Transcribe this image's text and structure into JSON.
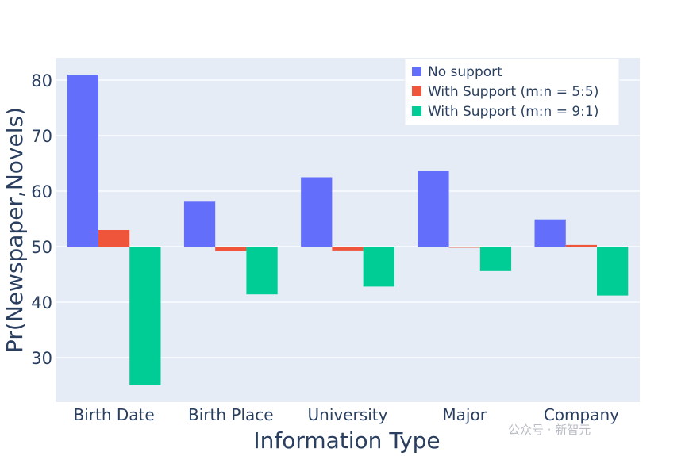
{
  "chart_data": {
    "type": "bar",
    "title": "",
    "xlabel": "Information Type",
    "ylabel": "Pr(Newspaper,Novels)",
    "categories": [
      "Birth Date",
      "Birth Place",
      "University",
      "Major",
      "Company"
    ],
    "base": 50,
    "ylim": [
      22,
      84
    ],
    "yticks": [
      30,
      40,
      50,
      60,
      70,
      80
    ],
    "grid": true,
    "legend_position": "top-right",
    "series": [
      {
        "name": "No support",
        "color": "#636efa",
        "values": [
          81,
          58.1,
          62.5,
          63.6,
          54.9
        ]
      },
      {
        "name": "With Support (m:n = 5:5)",
        "color": "#ef553b",
        "values": [
          53,
          49.2,
          49.3,
          49.8,
          50.3
        ]
      },
      {
        "name": "With Support (m:n = 9:1)",
        "color": "#00cc96",
        "values": [
          25,
          41.4,
          42.8,
          45.6,
          41.2
        ]
      }
    ]
  },
  "watermark": "公众号 · 新智元"
}
